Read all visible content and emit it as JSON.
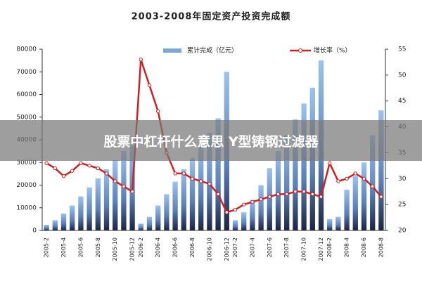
{
  "chart_data": {
    "type": "bar-line",
    "title": "2003-2008年固定资产投资完成额",
    "categories": [
      "2005-2",
      null,
      "2005-4",
      null,
      "2005-6",
      null,
      "2005-8",
      null,
      "2005-10",
      null,
      "2005-12",
      "2006-2",
      null,
      "2006-4",
      null,
      "2006-6",
      null,
      "2006-8",
      null,
      "2006-10",
      null,
      "2006-12",
      "2007-2",
      null,
      "2007-4",
      null,
      "2007-6",
      null,
      "2007-8",
      null,
      "2007-10",
      null,
      "2007-12",
      "2008-2",
      null,
      "2008-4",
      null,
      "2008-6",
      null,
      "2008-8"
    ],
    "series": [
      {
        "name": "累计完成（亿元）",
        "color": "#7aa9dc",
        "type": "bar",
        "values": [
          2500,
          4500,
          7500,
          11000,
          15000,
          19000,
          23000,
          27000,
          31000,
          35000,
          37500,
          3000,
          6000,
          11000,
          16000,
          21500,
          27000,
          32000,
          37000,
          43000,
          49500,
          70000,
          4500,
          8000,
          13500,
          20000,
          27500,
          35000,
          42000,
          49000,
          56000,
          63000,
          75000,
          5000,
          6000,
          18000,
          24000,
          30000,
          42000,
          53000
        ]
      },
      {
        "name": "增长率（%）",
        "color": "#cc2222",
        "type": "line",
        "axis": "y2",
        "values": [
          33,
          32,
          30.5,
          31.5,
          33,
          32.5,
          32,
          31,
          29.5,
          28.5,
          27.5,
          53,
          48,
          43,
          35,
          31,
          31,
          30,
          29.5,
          29,
          27,
          23.5,
          24,
          25,
          25.5,
          26,
          26.5,
          27,
          27,
          27.5,
          27.5,
          27,
          26.5,
          33,
          29.5,
          30,
          31,
          30,
          28.5,
          26.5
        ]
      }
    ],
    "ylim": [
      0,
      80000
    ],
    "yticks": [
      0,
      10000,
      20000,
      30000,
      40000,
      50000,
      60000,
      70000,
      80000
    ],
    "y2lim": [
      20,
      55
    ],
    "y2ticks": [
      20,
      25,
      30,
      35,
      40,
      45,
      50,
      55
    ]
  },
  "banner": "股票中杠杆什么意思 Y型铸钢过滤器"
}
